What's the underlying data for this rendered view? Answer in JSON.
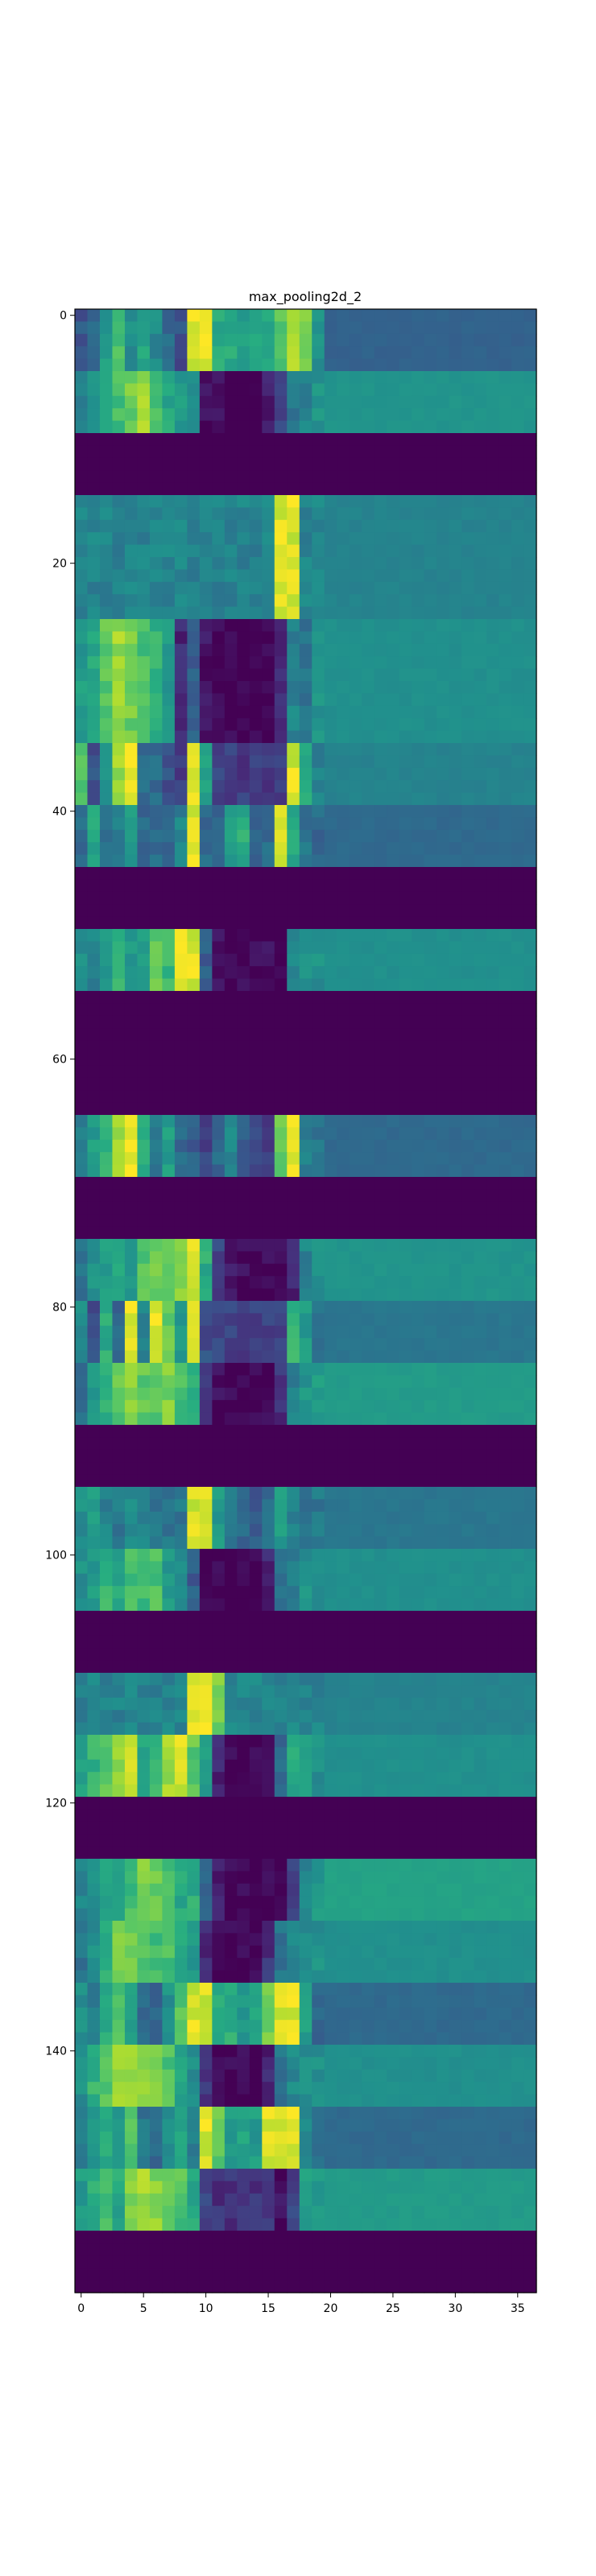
{
  "chart_data": {
    "type": "heatmap",
    "title": "max_pooling2d_2",
    "xlabel": "",
    "ylabel": "",
    "colormap": "viridis",
    "value_range": [
      0,
      1
    ],
    "cols": 37,
    "rows": 160,
    "xlim": [
      -0.5,
      36.5
    ],
    "ylim": [
      159.5,
      -0.5
    ],
    "x_ticks": [
      0,
      5,
      10,
      15,
      20,
      25,
      30,
      35
    ],
    "y_ticks": [
      0,
      20,
      40,
      60,
      80,
      100,
      120,
      140
    ],
    "grid": false,
    "row_groups": [
      {
        "rows": [
          0,
          4
        ],
        "pattern": "A"
      },
      {
        "rows": [
          5,
          9
        ],
        "pattern": "B"
      },
      {
        "rows": [
          10,
          14
        ],
        "pattern": "ZERO"
      },
      {
        "rows": [
          15,
          24
        ],
        "pattern": "C"
      },
      {
        "rows": [
          25,
          34
        ],
        "pattern": "D"
      },
      {
        "rows": [
          35,
          39
        ],
        "pattern": "E"
      },
      {
        "rows": [
          40,
          44
        ],
        "pattern": "F"
      },
      {
        "rows": [
          45,
          49
        ],
        "pattern": "ZERO"
      },
      {
        "rows": [
          50,
          54
        ],
        "pattern": "G"
      },
      {
        "rows": [
          55,
          64
        ],
        "pattern": "ZERO"
      },
      {
        "rows": [
          65,
          69
        ],
        "pattern": "H"
      },
      {
        "rows": [
          70,
          74
        ],
        "pattern": "ZERO"
      },
      {
        "rows": [
          75,
          79
        ],
        "pattern": "I"
      },
      {
        "rows": [
          80,
          84
        ],
        "pattern": "J"
      },
      {
        "rows": [
          85,
          89
        ],
        "pattern": "K"
      },
      {
        "rows": [
          90,
          94
        ],
        "pattern": "ZERO"
      },
      {
        "rows": [
          95,
          99
        ],
        "pattern": "L"
      },
      {
        "rows": [
          100,
          104
        ],
        "pattern": "M"
      },
      {
        "rows": [
          105,
          109
        ],
        "pattern": "ZERO"
      },
      {
        "rows": [
          110,
          114
        ],
        "pattern": "N"
      },
      {
        "rows": [
          115,
          119
        ],
        "pattern": "O"
      },
      {
        "rows": [
          120,
          124
        ],
        "pattern": "ZERO"
      },
      {
        "rows": [
          125,
          129
        ],
        "pattern": "P"
      },
      {
        "rows": [
          130,
          134
        ],
        "pattern": "Q"
      },
      {
        "rows": [
          135,
          139
        ],
        "pattern": "R"
      },
      {
        "rows": [
          140,
          144
        ],
        "pattern": "S"
      },
      {
        "rows": [
          145,
          149
        ],
        "pattern": "T"
      },
      {
        "rows": [
          150,
          154
        ],
        "pattern": "U"
      },
      {
        "rows": [
          155,
          159
        ],
        "pattern": "ZERO"
      }
    ],
    "patterns": {
      "ZERO": {
        "base": [
          0.0
        ],
        "tail_from": 0,
        "tail": 0.0
      },
      "A": {
        "base": [
          0.28,
          0.35,
          0.55,
          0.7,
          0.5,
          0.6,
          0.48,
          0.35,
          0.25,
          0.95,
          0.95,
          0.62,
          0.6,
          0.55,
          0.58,
          0.62,
          0.72,
          0.85,
          0.8,
          0.5
        ],
        "tail_from": 20,
        "tail": 0.32
      },
      "B": {
        "base": [
          0.45,
          0.5,
          0.6,
          0.7,
          0.78,
          0.85,
          0.72,
          0.6,
          0.55,
          0.5,
          0.05,
          0.02,
          0.0,
          0.0,
          0.0,
          0.1,
          0.2,
          0.4,
          0.45,
          0.52
        ],
        "tail_from": 20,
        "tail": 0.52
      },
      "C": {
        "base": [
          0.45,
          0.45,
          0.45,
          0.45,
          0.45,
          0.45,
          0.45,
          0.45,
          0.45,
          0.45,
          0.45,
          0.45,
          0.45,
          0.45,
          0.45,
          0.45,
          0.95,
          0.95,
          0.45,
          0.45
        ],
        "tail_from": 20,
        "tail": 0.45
      },
      "D": {
        "base": [
          0.55,
          0.6,
          0.75,
          0.85,
          0.78,
          0.7,
          0.65,
          0.55,
          0.12,
          0.3,
          0.05,
          0.0,
          0.0,
          0.0,
          0.0,
          0.0,
          0.12,
          0.45,
          0.38,
          0.5
        ],
        "tail_from": 20,
        "tail": 0.5
      },
      "E": {
        "base": [
          0.7,
          0.25,
          0.5,
          0.85,
          0.98,
          0.35,
          0.35,
          0.25,
          0.2,
          0.95,
          0.55,
          0.2,
          0.18,
          0.18,
          0.18,
          0.18,
          0.2,
          0.95,
          0.6,
          0.45
        ],
        "tail_from": 20,
        "tail": 0.45
      },
      "F": {
        "base": [
          0.35,
          0.6,
          0.4,
          0.45,
          0.55,
          0.35,
          0.35,
          0.35,
          0.45,
          0.95,
          0.35,
          0.3,
          0.55,
          0.62,
          0.35,
          0.35,
          0.95,
          0.6,
          0.4,
          0.35
        ],
        "tail_from": 20,
        "tail": 0.35
      },
      "G": {
        "base": [
          0.5,
          0.45,
          0.55,
          0.65,
          0.55,
          0.55,
          0.75,
          0.68,
          0.95,
          0.95,
          0.3,
          0.05,
          0.02,
          0.02,
          0.02,
          0.05,
          0.0,
          0.45,
          0.5,
          0.5
        ],
        "tail_from": 20,
        "tail": 0.5
      },
      "H": {
        "base": [
          0.45,
          0.55,
          0.65,
          0.85,
          0.98,
          0.6,
          0.4,
          0.55,
          0.35,
          0.3,
          0.2,
          0.35,
          0.45,
          0.3,
          0.25,
          0.2,
          0.78,
          0.95,
          0.45,
          0.4
        ],
        "tail_from": 20,
        "tail": 0.35
      },
      "I": {
        "base": [
          0.4,
          0.5,
          0.55,
          0.6,
          0.55,
          0.72,
          0.78,
          0.8,
          0.85,
          0.95,
          0.62,
          0.2,
          0.05,
          0.02,
          0.02,
          0.02,
          0.02,
          0.1,
          0.45,
          0.5
        ],
        "tail_from": 20,
        "tail": 0.52
      },
      "J": {
        "base": [
          0.5,
          0.25,
          0.62,
          0.35,
          0.98,
          0.45,
          0.98,
          0.78,
          0.55,
          0.95,
          0.25,
          0.2,
          0.2,
          0.2,
          0.2,
          0.2,
          0.2,
          0.68,
          0.55,
          0.4
        ],
        "tail_from": 20,
        "tail": 0.4
      },
      "K": {
        "base": [
          0.35,
          0.55,
          0.62,
          0.75,
          0.82,
          0.75,
          0.72,
          0.8,
          0.7,
          0.62,
          0.15,
          0.02,
          0.0,
          0.0,
          0.0,
          0.0,
          0.15,
          0.45,
          0.52,
          0.55
        ],
        "tail_from": 20,
        "tail": 0.55
      },
      "L": {
        "base": [
          0.5,
          0.55,
          0.45,
          0.4,
          0.5,
          0.45,
          0.4,
          0.4,
          0.4,
          0.95,
          0.98,
          0.55,
          0.4,
          0.35,
          0.3,
          0.35,
          0.55,
          0.45,
          0.4,
          0.4
        ],
        "tail_from": 20,
        "tail": 0.4
      },
      "M": {
        "base": [
          0.5,
          0.55,
          0.65,
          0.6,
          0.7,
          0.68,
          0.72,
          0.55,
          0.5,
          0.3,
          0.05,
          0.0,
          0.0,
          0.0,
          0.0,
          0.1,
          0.4,
          0.45,
          0.5,
          0.5
        ],
        "tail_from": 20,
        "tail": 0.5
      },
      "N": {
        "base": [
          0.45,
          0.45,
          0.45,
          0.45,
          0.45,
          0.45,
          0.45,
          0.45,
          0.45,
          0.95,
          0.95,
          0.8,
          0.45,
          0.45,
          0.45,
          0.45,
          0.45,
          0.45,
          0.45,
          0.45
        ],
        "tail_from": 20,
        "tail": 0.45
      },
      "O": {
        "base": [
          0.55,
          0.65,
          0.75,
          0.85,
          0.95,
          0.6,
          0.7,
          0.85,
          0.95,
          0.75,
          0.55,
          0.1,
          0.0,
          0.0,
          0.0,
          0.05,
          0.35,
          0.6,
          0.55,
          0.5
        ],
        "tail_from": 20,
        "tail": 0.5
      },
      "P": {
        "base": [
          0.45,
          0.5,
          0.6,
          0.55,
          0.7,
          0.8,
          0.78,
          0.7,
          0.6,
          0.62,
          0.35,
          0.1,
          0.0,
          0.0,
          0.0,
          0.0,
          0.0,
          0.2,
          0.45,
          0.55
        ],
        "tail_from": 20,
        "tail": 0.58
      },
      "Q": {
        "base": [
          0.4,
          0.5,
          0.65,
          0.78,
          0.8,
          0.75,
          0.7,
          0.72,
          0.6,
          0.55,
          0.1,
          0.0,
          0.0,
          0.0,
          0.0,
          0.15,
          0.4,
          0.45,
          0.5,
          0.5
        ],
        "tail_from": 20,
        "tail": 0.5
      },
      "R": {
        "base": [
          0.5,
          0.45,
          0.62,
          0.7,
          0.55,
          0.35,
          0.35,
          0.5,
          0.72,
          0.95,
          0.95,
          0.65,
          0.62,
          0.55,
          0.6,
          0.8,
          0.95,
          0.95,
          0.55,
          0.35
        ],
        "tail_from": 20,
        "tail": 0.35
      },
      "S": {
        "base": [
          0.5,
          0.65,
          0.75,
          0.85,
          0.88,
          0.85,
          0.8,
          0.72,
          0.6,
          0.5,
          0.15,
          0.0,
          0.0,
          0.0,
          0.0,
          0.1,
          0.4,
          0.48,
          0.5,
          0.5
        ],
        "tail_from": 20,
        "tail": 0.5
      },
      "T": {
        "base": [
          0.4,
          0.55,
          0.62,
          0.5,
          0.72,
          0.4,
          0.35,
          0.5,
          0.6,
          0.45,
          0.95,
          0.75,
          0.55,
          0.6,
          0.55,
          0.95,
          0.95,
          0.95,
          0.5,
          0.35
        ],
        "tail_from": 20,
        "tail": 0.35
      },
      "U": {
        "base": [
          0.55,
          0.62,
          0.7,
          0.6,
          0.8,
          0.85,
          0.82,
          0.75,
          0.72,
          0.6,
          0.2,
          0.15,
          0.15,
          0.15,
          0.15,
          0.15,
          0.05,
          0.2,
          0.55,
          0.55
        ],
        "tail_from": 20,
        "tail": 0.55
      }
    }
  }
}
